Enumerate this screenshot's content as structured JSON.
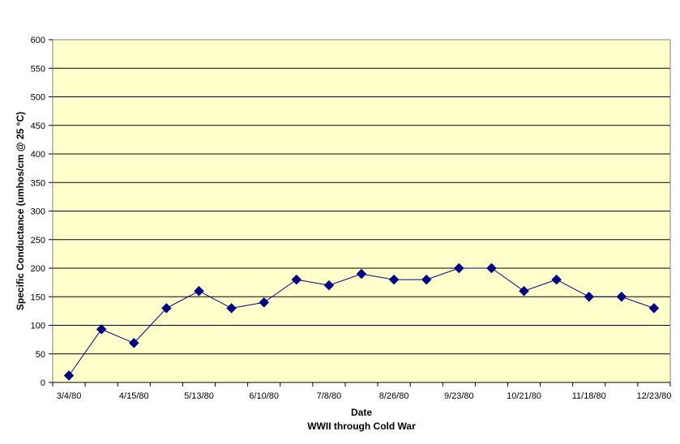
{
  "chart_data": {
    "type": "line",
    "title": "",
    "xlabel": "Date",
    "xlabel_sub": "WWII through Cold War",
    "ylabel": "Specific Conductance (umhos/cm @ 25 °C)",
    "ylim": [
      0,
      600
    ],
    "y_ticks": [
      "0",
      "50",
      "100",
      "150",
      "200",
      "250",
      "300",
      "350",
      "400",
      "450",
      "500",
      "550",
      "600"
    ],
    "x_tick_labels": [
      "3/4/80",
      "4/15/80",
      "5/13/80",
      "6/10/80",
      "7/8/80",
      "8/26/80",
      "9/23/80",
      "10/21/80",
      "11/18/80",
      "12/23/80"
    ],
    "grid": true,
    "legend": "none",
    "series": [
      {
        "values": [
          12,
          93,
          69,
          130,
          160,
          130,
          140,
          180,
          170,
          190,
          180,
          180,
          200,
          200,
          160,
          180,
          150,
          150,
          130
        ]
      }
    ]
  },
  "colors": {
    "plot_background": "#FFFFCC",
    "line": "#000080",
    "marker": "#000080",
    "grid": "#000000"
  }
}
